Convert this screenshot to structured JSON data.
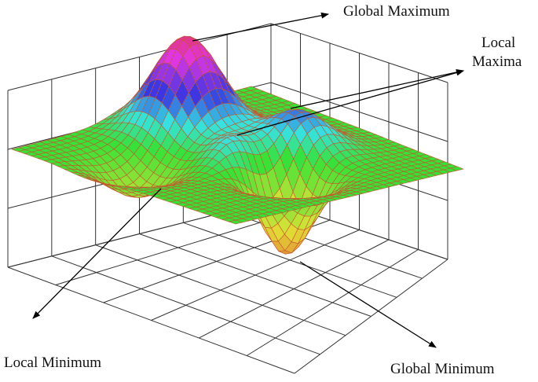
{
  "labels": {
    "global_maximum": "Global Maximum",
    "local_maxima": [
      "Local",
      "Maxima"
    ],
    "local_minimum": "Local Minimum",
    "global_minimum": "Global Minimum"
  }
}
